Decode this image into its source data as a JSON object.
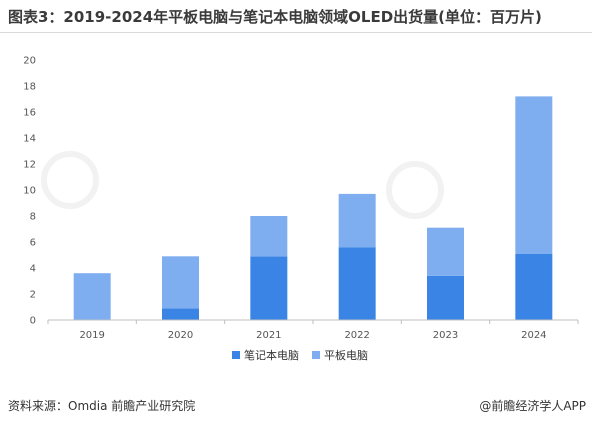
{
  "title": "图表3：2019-2024年平板电脑与笔记本电脑领域OLED出货量(单位：百万片)",
  "source": "资料来源：Omdia 前瞻产业研究院",
  "brand": "@前瞻经济学人APP",
  "colors": {
    "notebook": "#3a84e6",
    "tablet": "#7eaef0",
    "axis": "#bfbfbf"
  },
  "chart_data": {
    "type": "bar",
    "stacked": true,
    "categories": [
      "2019",
      "2020",
      "2021",
      "2022",
      "2023",
      "2024"
    ],
    "series": [
      {
        "name": "笔记本电脑",
        "values": [
          0,
          0.9,
          4.9,
          5.6,
          3.4,
          5.1
        ]
      },
      {
        "name": "平板电脑",
        "values": [
          3.6,
          4.0,
          3.1,
          4.1,
          3.7,
          12.1
        ]
      }
    ],
    "ylim": [
      0,
      20
    ],
    "yticks": [
      0,
      2,
      4,
      6,
      8,
      10,
      12,
      14,
      16,
      18,
      20
    ],
    "grid": false,
    "legend_position": "bottom"
  }
}
